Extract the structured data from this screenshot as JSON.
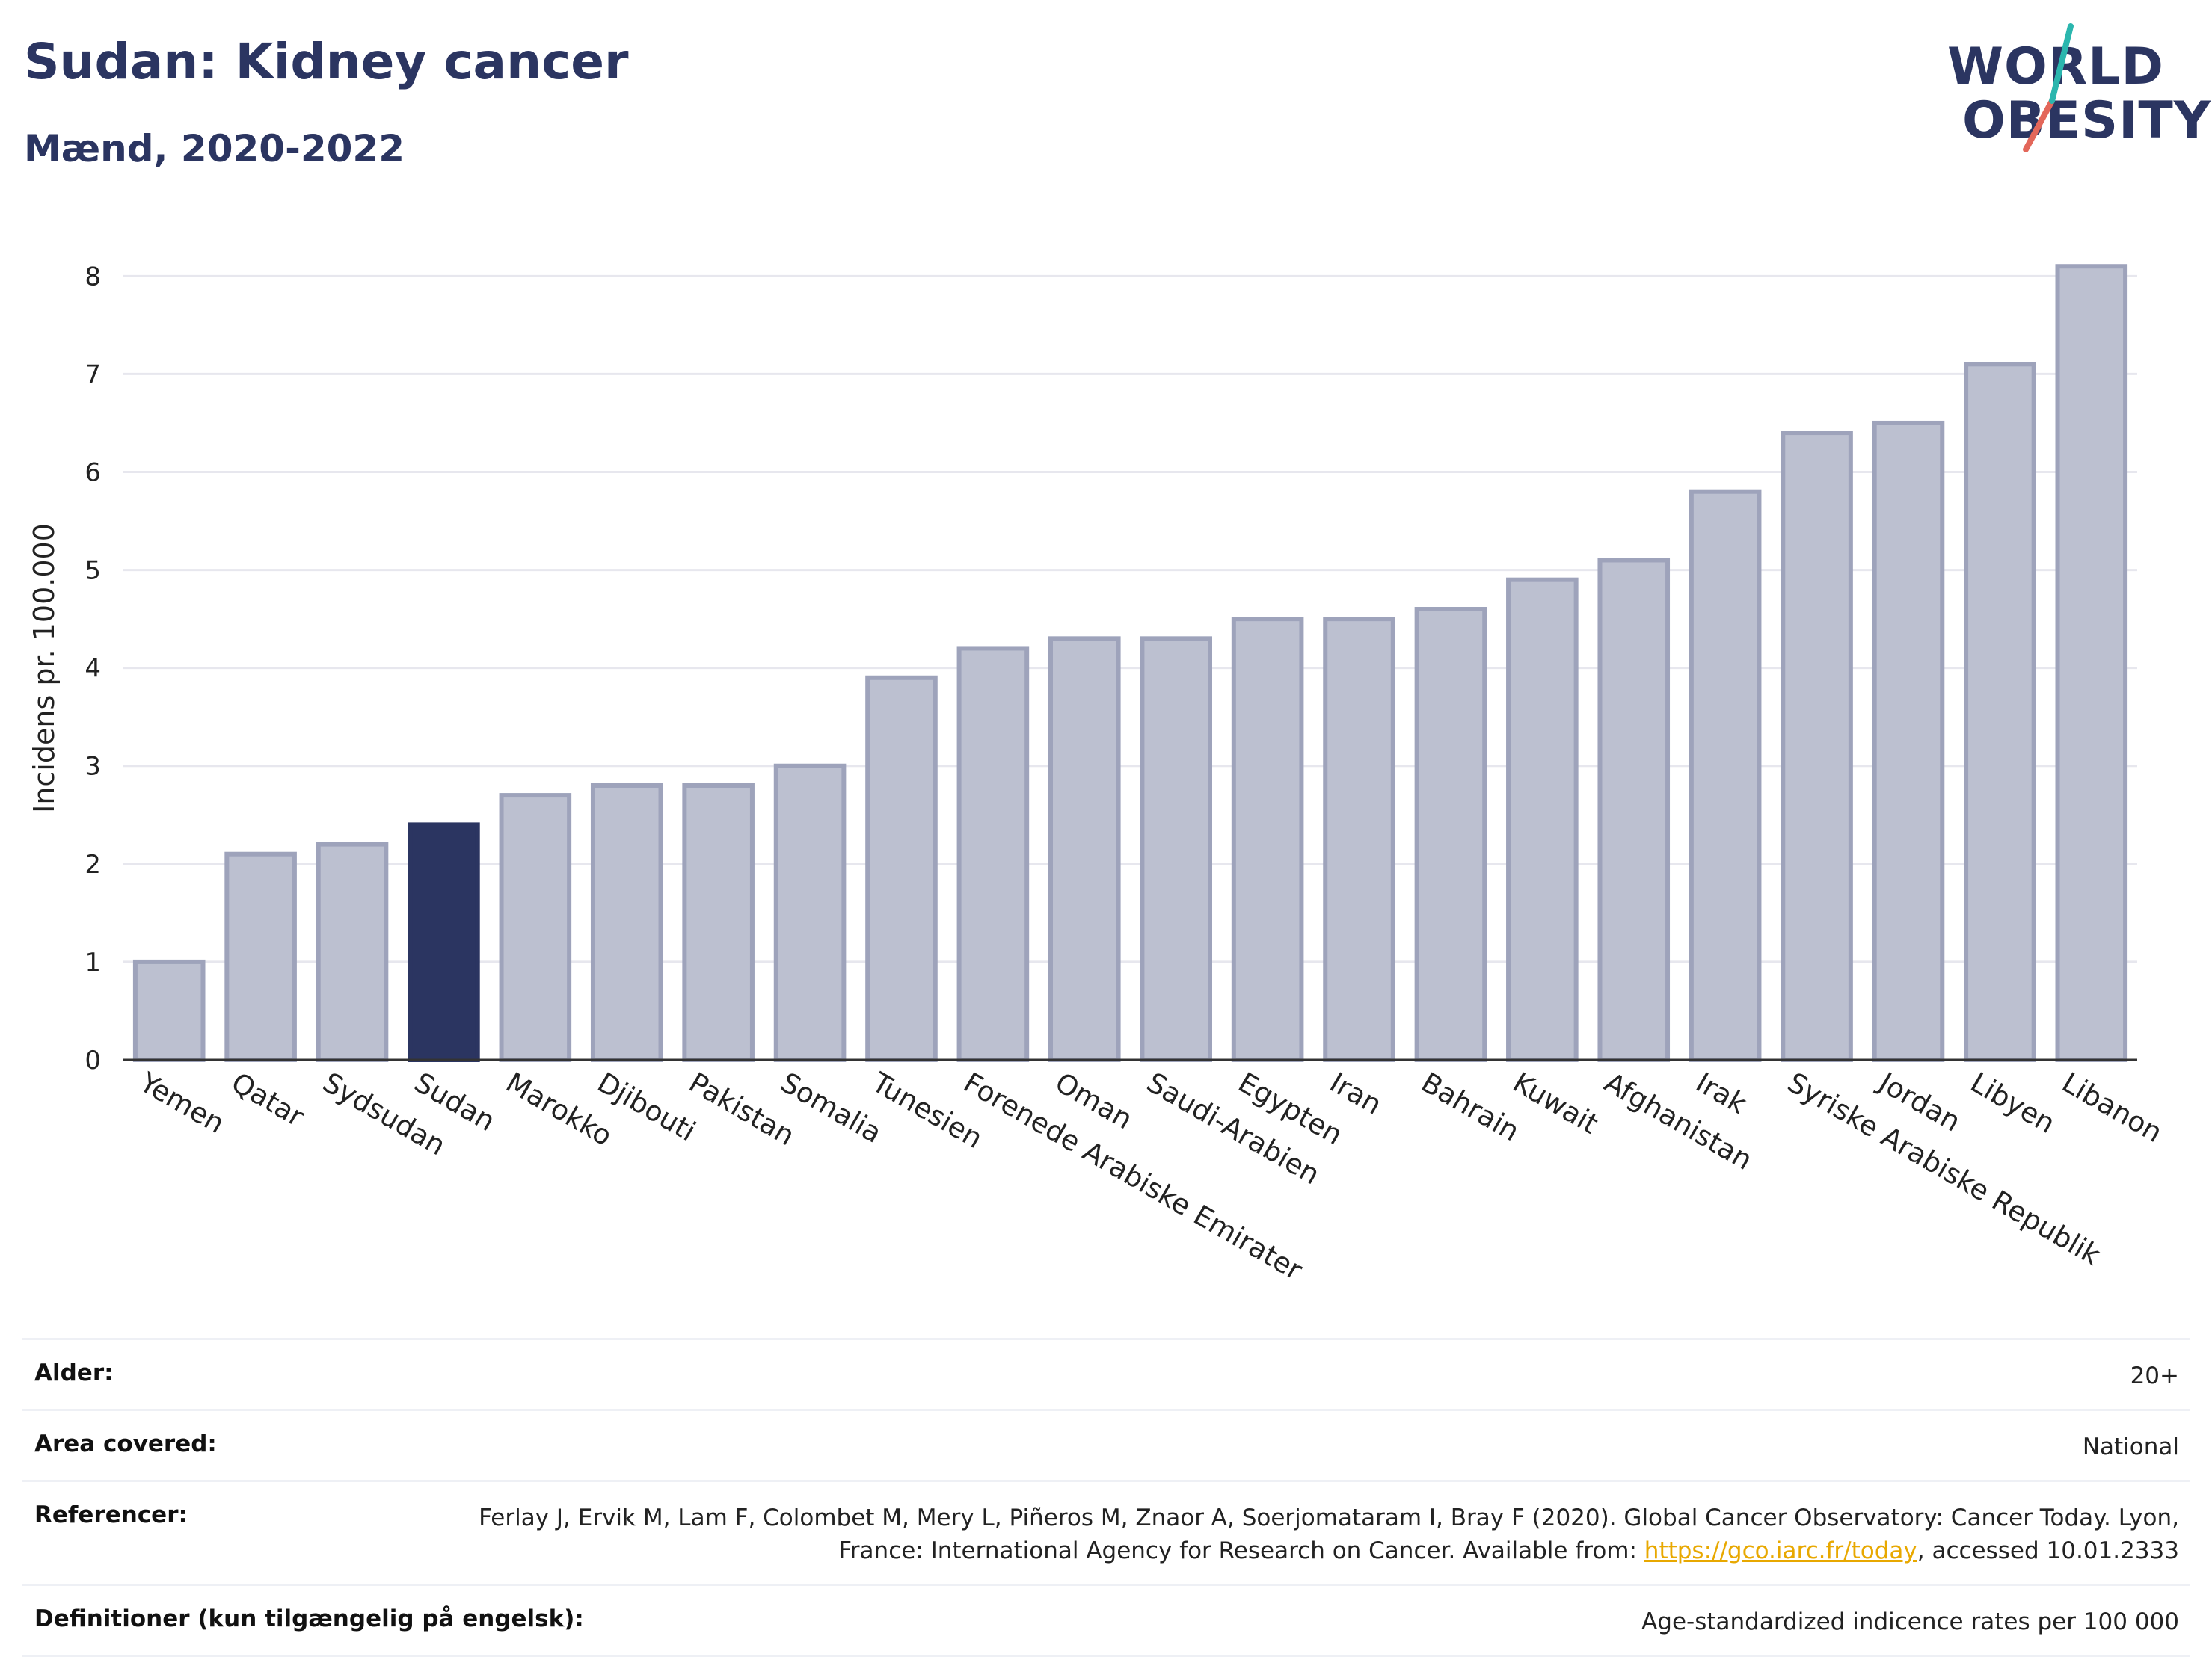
{
  "title": "Sudan: Kidney cancer",
  "subtitle": "Mænd, 2020-2022",
  "logo": {
    "line1": "WORLD",
    "line2": "OBESITY",
    "accent1": "#2bb6ae",
    "accent2": "#e3675a"
  },
  "colors": {
    "bar": "#bcc0d0",
    "bar_stroke": "#9ea3bb",
    "highlight": "#2b3561",
    "grid": "#e7e7ee"
  },
  "chart_data": {
    "type": "bar",
    "ylabel": "Incidens pr. 100.000",
    "ylim": [
      0,
      8.3
    ],
    "yticks": [
      0,
      1,
      2,
      3,
      4,
      5,
      6,
      7,
      8
    ],
    "grid": true,
    "highlight": "Sudan",
    "categories": [
      "Yemen",
      "Qatar",
      "Sydsudan",
      "Sudan",
      "Marokko",
      "Djibouti",
      "Pakistan",
      "Somalia",
      "Tunesien",
      "Forenede Arabiske Emirater",
      "Oman",
      "Saudi-Arabien",
      "Egypten",
      "Iran",
      "Bahrain",
      "Kuwait",
      "Afghanistan",
      "Irak",
      "Syriske Arabiske Republik",
      "Jordan",
      "Libyen",
      "Libanon"
    ],
    "values": [
      1.0,
      2.1,
      2.2,
      2.4,
      2.7,
      2.8,
      2.8,
      3.0,
      3.9,
      4.2,
      4.3,
      4.3,
      4.5,
      4.5,
      4.6,
      4.9,
      5.1,
      5.8,
      6.4,
      6.5,
      7.1,
      8.1
    ]
  },
  "info": {
    "age_label": "Alder:",
    "age_value": "20+",
    "area_label": "Area covered:",
    "area_value": "National",
    "ref_label": "Referencer:",
    "ref_text1": "Ferlay J, Ervik M, Lam F, Colombet M, Mery L, Piñeros M, Znaor A, Soerjomataram I, Bray F (2020). Global Cancer Observatory: Cancer Today. Lyon, France: International Agency for Research on Cancer. Available from: ",
    "ref_link": "https://gco.iarc.fr/today",
    "ref_text2": ", accessed 10.01.2333",
    "def_label": "Definitioner (kun tilgængelig på engelsk):",
    "def_value": "Age-standardized indicence rates per 100 000"
  }
}
